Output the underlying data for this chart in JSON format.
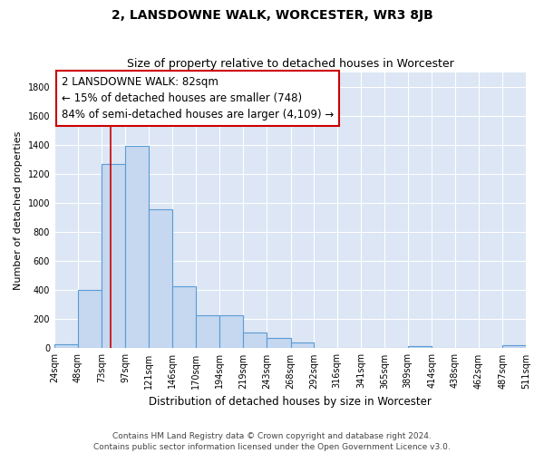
{
  "title": "2, LANSDOWNE WALK, WORCESTER, WR3 8JB",
  "subtitle": "Size of property relative to detached houses in Worcester",
  "xlabel": "Distribution of detached houses by size in Worcester",
  "ylabel": "Number of detached properties",
  "footnote1": "Contains HM Land Registry data © Crown copyright and database right 2024.",
  "footnote2": "Contains public sector information licensed under the Open Government Licence v3.0.",
  "bin_edges": [
    24,
    48,
    73,
    97,
    121,
    146,
    170,
    194,
    219,
    243,
    268,
    292,
    316,
    341,
    365,
    389,
    414,
    438,
    462,
    487,
    511
  ],
  "bar_heights": [
    30,
    400,
    1265,
    1390,
    955,
    425,
    230,
    230,
    110,
    70,
    40,
    0,
    0,
    0,
    0,
    15,
    0,
    0,
    0,
    20
  ],
  "bar_color": "#c5d8f0",
  "bar_edge_color": "#5b9bd5",
  "property_line_x": 82,
  "property_line_color": "#cc0000",
  "annotation_title": "2 LANSDOWNE WALK: 82sqm",
  "annotation_line1": "← 15% of detached houses are smaller (748)",
  "annotation_line2": "84% of semi-detached houses are larger (4,109) →",
  "annotation_box_edgecolor": "#cc0000",
  "ylim": [
    0,
    1900
  ],
  "yticks": [
    0,
    200,
    400,
    600,
    800,
    1000,
    1200,
    1400,
    1600,
    1800
  ],
  "fig_bg_color": "#ffffff",
  "plot_bg_color": "#dce6f5",
  "grid_color": "#ffffff",
  "title_fontsize": 10,
  "subtitle_fontsize": 9,
  "annotation_fontsize": 8.5,
  "tick_fontsize": 7,
  "ylabel_fontsize": 8,
  "xlabel_fontsize": 8.5,
  "footnote_fontsize": 6.5
}
